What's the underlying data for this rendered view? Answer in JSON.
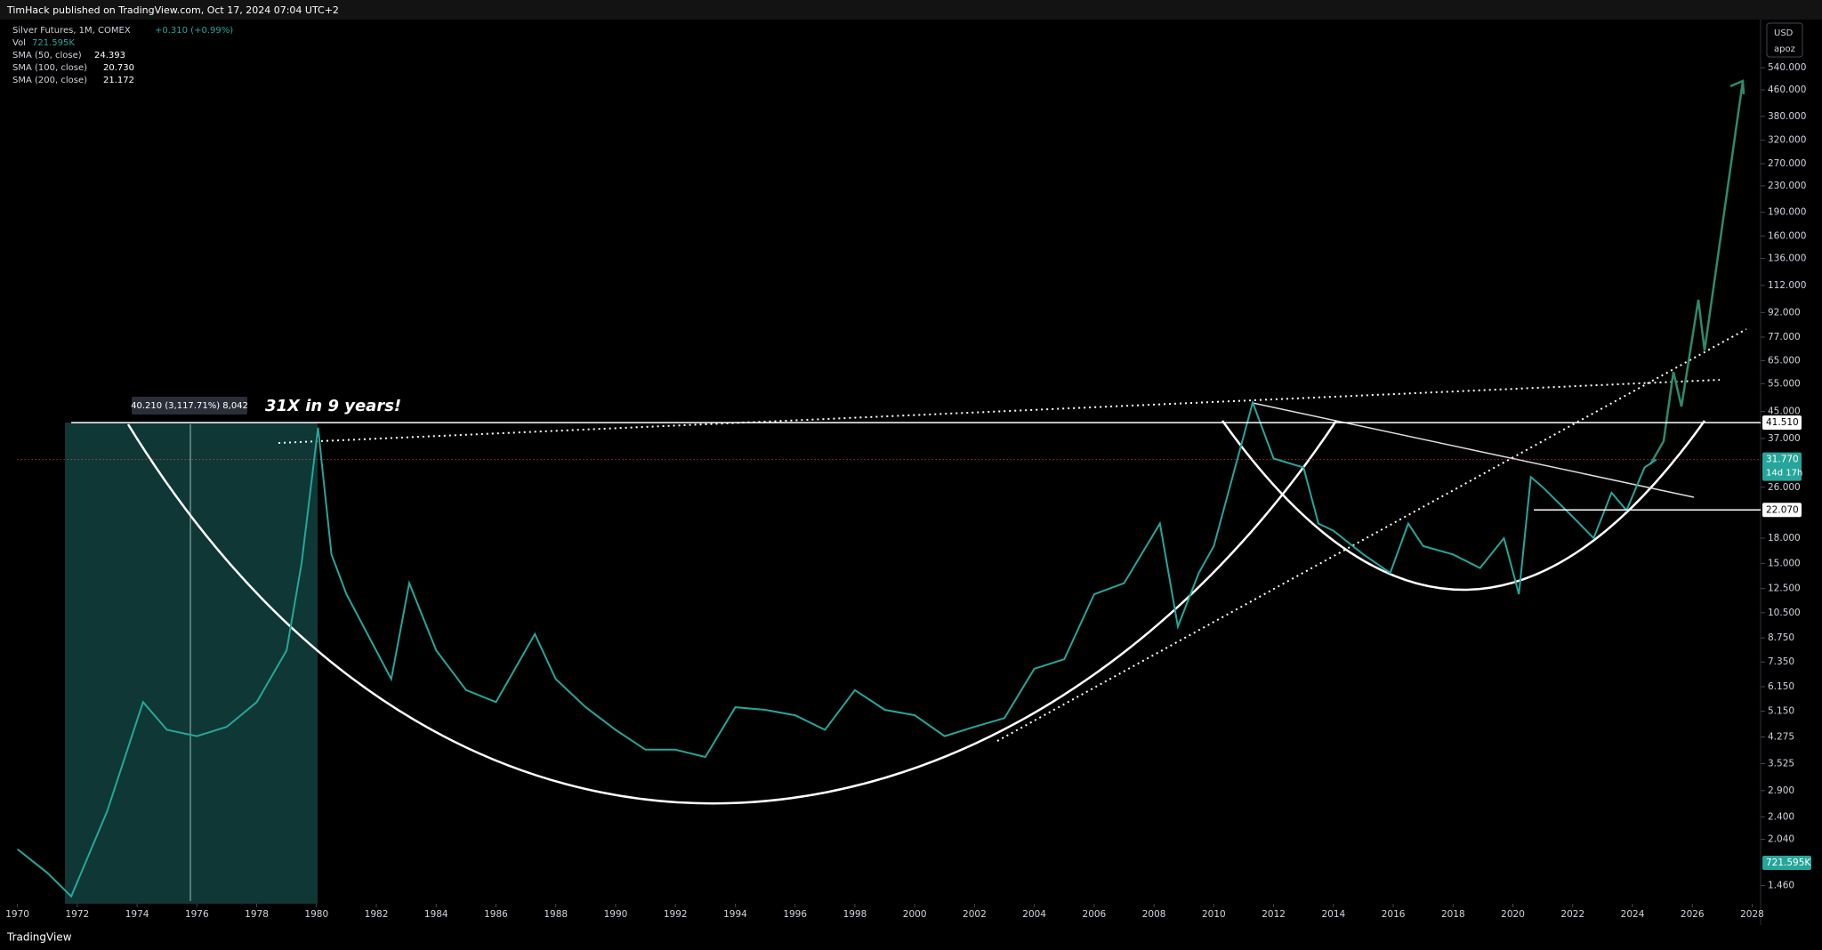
{
  "header": "TimHack published on TradingView.com, Oct 17, 2024 07:04 UTC+2",
  "legend": {
    "change": "+0.310 (+0.99%)",
    "vol_label": "Vol",
    "vol": "721.595K",
    "sma": [
      {
        "name": "SMA (50, close)",
        "value": "24.393"
      },
      {
        "name": "SMA (100, close)",
        "value": "20.730"
      },
      {
        "name": "SMA (200, close)",
        "value": "21.172"
      }
    ]
  },
  "currency": "USD",
  "scale_mode": "apoz",
  "footer": "TradingView",
  "chart_data": {
    "type": "line",
    "x": [
      1970,
      1971,
      1971.8,
      1973,
      1974.2,
      1975,
      1976,
      1977,
      1978,
      1979,
      1979.5,
      1980.05,
      1980.5,
      1981,
      1982.5,
      1983.1,
      1984,
      1985,
      1986,
      1987.3,
      1988,
      1989,
      1990,
      1991,
      1992,
      1993,
      1994,
      1995,
      1996,
      1997,
      1998,
      1999,
      2000,
      2001,
      2002,
      2003,
      2004,
      2005,
      2006,
      2007,
      2008.2,
      2008.8,
      2009.5,
      2010,
      2011.3,
      2012,
      2013,
      2013.5,
      2014,
      2015,
      2015.9,
      2016.5,
      2017,
      2018,
      2018.9,
      2019.7,
      2020.2,
      2020.6,
      2021,
      2022,
      2022.7,
      2023.3,
      2023.8,
      2024.4,
      2024.8
    ],
    "series": [
      {
        "name": "Silver Futures, 1M, COMEX",
        "color": "#26a69a",
        "values": [
          1.9,
          1.6,
          1.35,
          2.5,
          5.5,
          4.5,
          4.3,
          4.6,
          5.5,
          8,
          15,
          40,
          16,
          12,
          6.5,
          13,
          8,
          6,
          5.5,
          9,
          6.5,
          5.3,
          4.5,
          3.9,
          3.9,
          3.7,
          5.3,
          5.2,
          5,
          4.5,
          6,
          5.2,
          5,
          4.3,
          4.6,
          4.9,
          7,
          7.5,
          12,
          13,
          20,
          9.5,
          14,
          17,
          48,
          32,
          30,
          20,
          19,
          16,
          14,
          20,
          17,
          16,
          14.5,
          18,
          12,
          28,
          26,
          21,
          18,
          25,
          22,
          30,
          31.77
        ]
      }
    ],
    "xlim": [
      1970,
      2028
    ],
    "xticks": [
      1970,
      1972,
      1974,
      1976,
      1978,
      1980,
      1982,
      1984,
      1986,
      1988,
      1990,
      1992,
      1994,
      1996,
      1998,
      2000,
      2002,
      2004,
      2006,
      2008,
      2010,
      2012,
      2014,
      2016,
      2018,
      2020,
      2022,
      2024,
      2026,
      2028
    ],
    "ylim": [
      1.28,
      775
    ],
    "log_scale": true,
    "yticks": [
      {
        "value": 540,
        "label": "540.000"
      },
      {
        "value": 460,
        "label": "460.000"
      },
      {
        "value": 380,
        "label": "380.000"
      },
      {
        "value": 320,
        "label": "320.000"
      },
      {
        "value": 270,
        "label": "270.000"
      },
      {
        "value": 230,
        "label": "230.000"
      },
      {
        "value": 190,
        "label": "190.000"
      },
      {
        "value": 160,
        "label": "160.000"
      },
      {
        "value": 136,
        "label": "136.000"
      },
      {
        "value": 112,
        "label": "112.000"
      },
      {
        "value": 92,
        "label": "92.000"
      },
      {
        "value": 77,
        "label": "77.000"
      },
      {
        "value": 65,
        "label": "65.000"
      },
      {
        "value": 55,
        "label": "55.000"
      },
      {
        "value": 45,
        "label": "45.000"
      },
      {
        "value": 37,
        "label": "37.000"
      },
      {
        "value": 26,
        "label": "26.000"
      },
      {
        "value": 18,
        "label": "18.000"
      },
      {
        "value": 15,
        "label": "15.000"
      },
      {
        "value": 12.5,
        "label": "12.500"
      },
      {
        "value": 10.5,
        "label": "10.500"
      },
      {
        "value": 8.75,
        "label": "8.750"
      },
      {
        "value": 7.35,
        "label": "7.350"
      },
      {
        "value": 6.15,
        "label": "6.150"
      },
      {
        "value": 5.15,
        "label": "5.150"
      },
      {
        "value": 4.275,
        "label": "4.275"
      },
      {
        "value": 3.525,
        "label": "3.525"
      },
      {
        "value": 2.9,
        "label": "2.900"
      },
      {
        "value": 2.4,
        "label": "2.400"
      },
      {
        "value": 2.04,
        "label": "2.040"
      },
      {
        "value": 1.46,
        "label": "1.460"
      }
    ],
    "price_labels": [
      {
        "value": 41.51,
        "label": "41.510",
        "color": "#ffffff"
      },
      {
        "value": 31.77,
        "label": "31.770",
        "color": "#26a69a"
      },
      {
        "value": 22.07,
        "label": "22.070",
        "color": "#ffffff"
      }
    ],
    "countdown": "14d 17h",
    "volume_label": "721.595K",
    "annotations": [
      "31X in 9 years!",
      "40.210 (3,117.71%) 8,042"
    ]
  }
}
